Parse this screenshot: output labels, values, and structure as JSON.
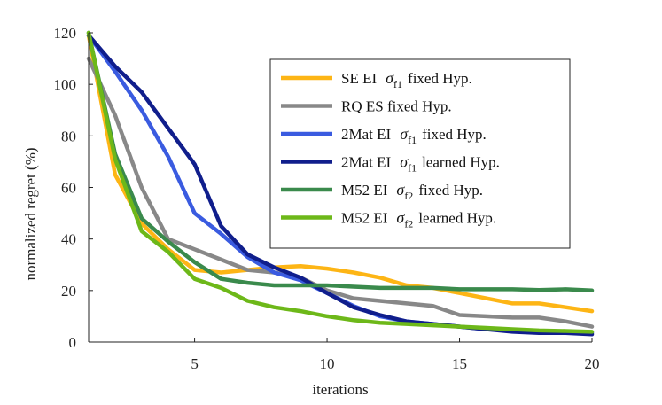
{
  "chart_data": {
    "type": "line",
    "xlabel": "iterations",
    "ylabel": "normalized regret (%)",
    "xlim": [
      1,
      20
    ],
    "ylim": [
      0,
      120
    ],
    "xticks": [
      5,
      10,
      15,
      20
    ],
    "yticks": [
      0,
      20,
      40,
      60,
      80,
      100,
      120
    ],
    "legend_position": "top-right",
    "x": [
      1,
      2,
      3,
      4,
      5,
      6,
      7,
      8,
      9,
      10,
      11,
      12,
      13,
      14,
      15,
      16,
      17,
      18,
      19,
      20
    ],
    "series": [
      {
        "name": "SE EI",
        "sigma": "σ",
        "sub": "f1",
        "suffix": "fixed Hyp.",
        "color": "#FDB515",
        "values": [
          119,
          65,
          46,
          36,
          28,
          27,
          28,
          29,
          29.5,
          28.5,
          27,
          25,
          22,
          21,
          19,
          17,
          15,
          15,
          13.5,
          12
        ]
      },
      {
        "name": "RQ ES fixed Hyp.",
        "sigma": "",
        "sub": "",
        "suffix": "",
        "color": "#888888",
        "values": [
          110,
          88,
          60,
          40,
          36,
          32,
          28,
          27,
          25,
          20,
          17,
          16,
          15,
          14,
          10.5,
          10,
          9.5,
          9.5,
          8,
          6
        ]
      },
      {
        "name": "2Mat EI",
        "sigma": "σ",
        "sub": "f1",
        "suffix": "fixed Hyp.",
        "color": "#3A5BE0",
        "values": [
          119,
          105,
          90,
          72,
          50,
          42,
          33,
          27,
          24,
          19,
          14,
          10,
          8,
          7,
          6,
          5,
          4.5,
          4,
          4,
          3.5
        ]
      },
      {
        "name": "2Mat EI",
        "sigma": "σ",
        "sub": "f1",
        "suffix": "learned Hyp.",
        "color": "#101E8C",
        "values": [
          119,
          107,
          97,
          83,
          69,
          45,
          34,
          29,
          25,
          19,
          13.5,
          10.5,
          8,
          7,
          6,
          5,
          4,
          3.5,
          3.5,
          3
        ]
      },
      {
        "name": "M52 EI",
        "sigma": "σ",
        "sub": "f2",
        "suffix": "fixed Hyp.",
        "color": "#3A8A4C",
        "values": [
          120,
          73,
          48,
          39,
          31,
          24.5,
          23,
          22,
          22,
          22,
          21.5,
          21,
          21,
          21,
          20.5,
          20.5,
          20.5,
          20.2,
          20.5,
          20
        ]
      },
      {
        "name": "M52 EI",
        "sigma": "σ",
        "sub": "f2",
        "suffix": "learned Hyp.",
        "color": "#6DB819",
        "values": [
          120,
          71,
          43,
          35,
          24.5,
          21,
          16,
          13.5,
          12,
          10,
          8.5,
          7.5,
          7,
          6.5,
          6,
          5.5,
          5,
          4.5,
          4.3,
          4
        ]
      }
    ]
  }
}
